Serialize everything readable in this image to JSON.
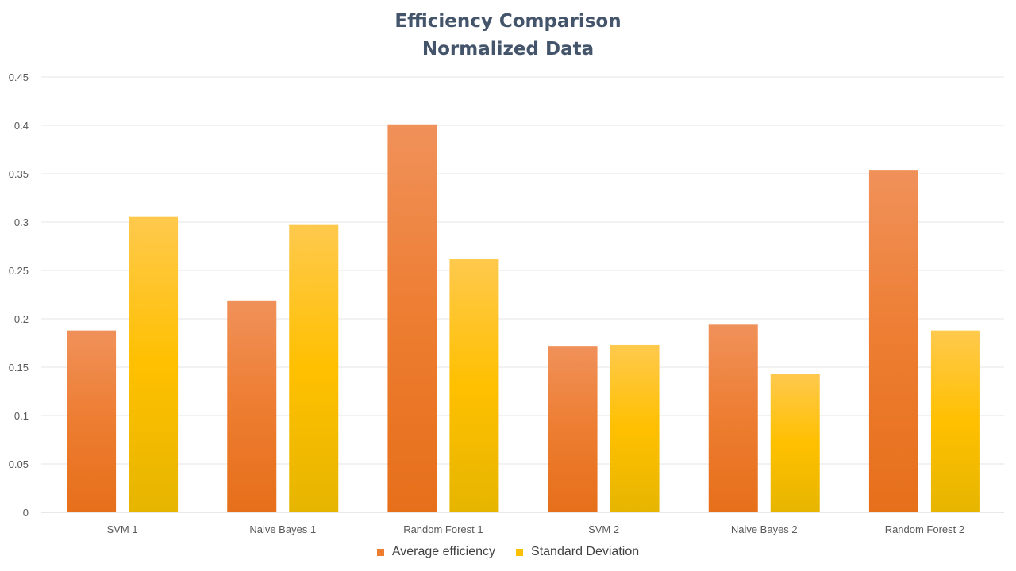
{
  "chart_data": {
    "type": "bar",
    "title": "Efficiency Comparison",
    "subtitle": "Normalized Data",
    "xlabel": "",
    "ylabel": "",
    "categories": [
      "SVM 1",
      "Naive Bayes 1",
      "Random Forest 1",
      "SVM 2",
      "Naive Bayes 2",
      "Random Forest 2"
    ],
    "series": [
      {
        "name": "Average efficiency",
        "color": "#ed7d31",
        "color_light": "#f0915a",
        "color_dark": "#e66f1a",
        "values": [
          0.188,
          0.219,
          0.401,
          0.172,
          0.194,
          0.354
        ]
      },
      {
        "name": "Standard Deviation",
        "color": "#ffc000",
        "color_light": "#ffc94d",
        "color_dark": "#e6b500",
        "values": [
          0.306,
          0.297,
          0.262,
          0.173,
          0.143,
          0.188
        ]
      }
    ],
    "ylim": [
      0,
      0.45
    ],
    "yticks": [
      "0",
      "0.05",
      "0.1",
      "0.15",
      "0.2",
      "0.25",
      "0.3",
      "0.35",
      "0.4",
      "0.45"
    ],
    "grid": true,
    "legend_position": "bottom"
  }
}
